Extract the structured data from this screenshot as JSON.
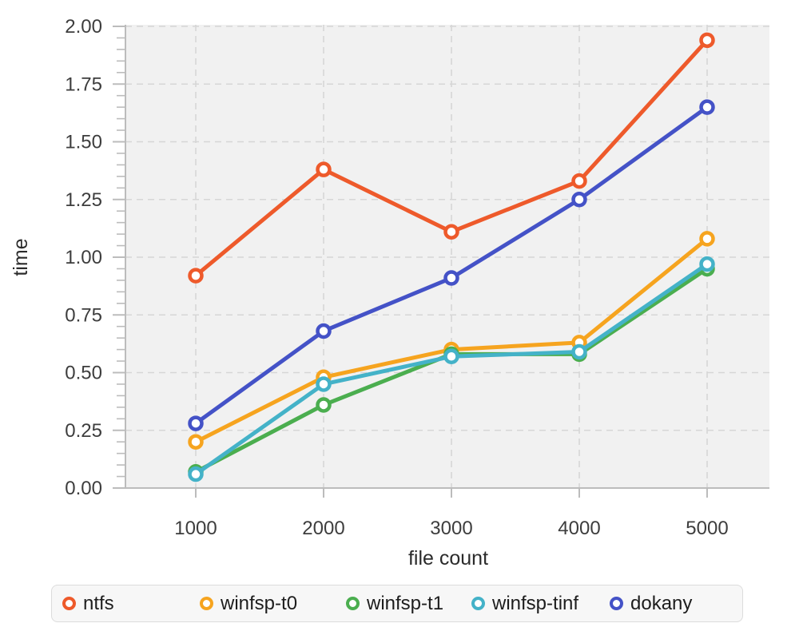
{
  "chart_data": {
    "type": "line",
    "title": "",
    "xlabel": "file count",
    "ylabel": "time",
    "x": [
      1000,
      2000,
      3000,
      4000,
      5000
    ],
    "x_tick_labels": [
      "1000",
      "2000",
      "3000",
      "4000",
      "5000"
    ],
    "y_ticks": [
      0,
      0.25,
      0.5,
      0.75,
      1.0,
      1.25,
      1.5,
      1.75,
      2.0
    ],
    "ylim": [
      0,
      2.0
    ],
    "grid": "dashed major gridlines on both axes over light-gray plot panel",
    "marker": "open-circle-white-fill",
    "legend_position": "bottom",
    "series": [
      {
        "name": "ntfs",
        "color": "#ee5a2b",
        "values": [
          0.92,
          1.38,
          1.11,
          1.33,
          1.94
        ]
      },
      {
        "name": "winfsp-t0",
        "color": "#f6a41f",
        "values": [
          0.2,
          0.48,
          0.6,
          0.63,
          1.08
        ]
      },
      {
        "name": "winfsp-t1",
        "color": "#4bae4f",
        "values": [
          0.07,
          0.36,
          0.58,
          0.58,
          0.95
        ]
      },
      {
        "name": "winfsp-tinf",
        "color": "#44b2c8",
        "values": [
          0.06,
          0.45,
          0.57,
          0.59,
          0.97
        ]
      },
      {
        "name": "dokany",
        "color": "#4452c7",
        "values": [
          0.28,
          0.68,
          0.91,
          1.25,
          1.65
        ]
      }
    ],
    "colors": {
      "plot_background": "#f1f1f1",
      "gridline": "#d6d6d6",
      "axis": "#bcbcbc",
      "tick_label": "#3d3d3d",
      "axis_title": "#2b2b2b"
    }
  },
  "legend": {
    "items": [
      {
        "label": "ntfs",
        "color": "#ee5a2b"
      },
      {
        "label": "winfsp-t0",
        "color": "#f6a41f"
      },
      {
        "label": "winfsp-t1",
        "color": "#4bae4f"
      },
      {
        "label": "winfsp-tinf",
        "color": "#44b2c8"
      },
      {
        "label": "dokany",
        "color": "#4452c7"
      }
    ]
  }
}
